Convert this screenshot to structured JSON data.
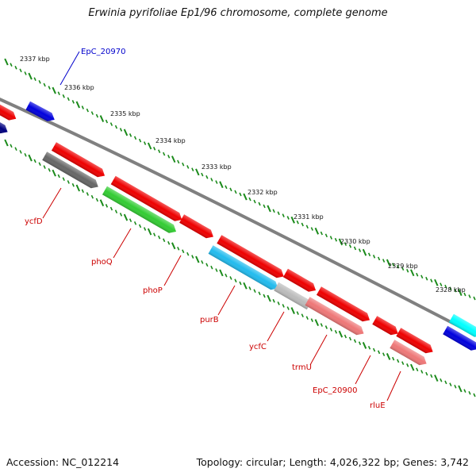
{
  "title": "Erwinia pyrifoliae Ep1/96 chromosome, complete genome",
  "footer": {
    "accession": "Accession: NC_012214",
    "summary": "Topology: circular; Length: 4,026,322 bp; Genes: 3,742"
  },
  "ruler_labels": [
    "2337 kbp",
    "2336 kbp",
    "2335 kbp",
    "2334 kbp",
    "2333 kbp",
    "2332 kbp",
    "2331 kbp",
    "2330 kbp",
    "2329 kbp",
    "2328 kbp"
  ],
  "gene_labels": [
    {
      "name": "EpC_20970",
      "color": "#0000cc"
    },
    {
      "name": "ycfD",
      "color": "#cc0000"
    },
    {
      "name": "phoQ",
      "color": "#cc0000"
    },
    {
      "name": "phoP",
      "color": "#cc0000"
    },
    {
      "name": "purB",
      "color": "#cc0000"
    },
    {
      "name": "ycfC",
      "color": "#cc0000"
    },
    {
      "name": "trmU",
      "color": "#cc0000"
    },
    {
      "name": "EpC_20900",
      "color": "#cc0000"
    },
    {
      "name": "rluE",
      "color": "#cc0000"
    }
  ],
  "colors": {
    "backbone": "#808080",
    "ticks": "#1a8a1a",
    "red": "#ee0000",
    "blue": "#0000dd",
    "navy": "#000080",
    "gray": "#666666",
    "green": "#33cc33",
    "skyblue": "#22bbee",
    "lightgray": "#bbbbbb",
    "pink": "#ee7777",
    "cyan": "#00ffff"
  }
}
